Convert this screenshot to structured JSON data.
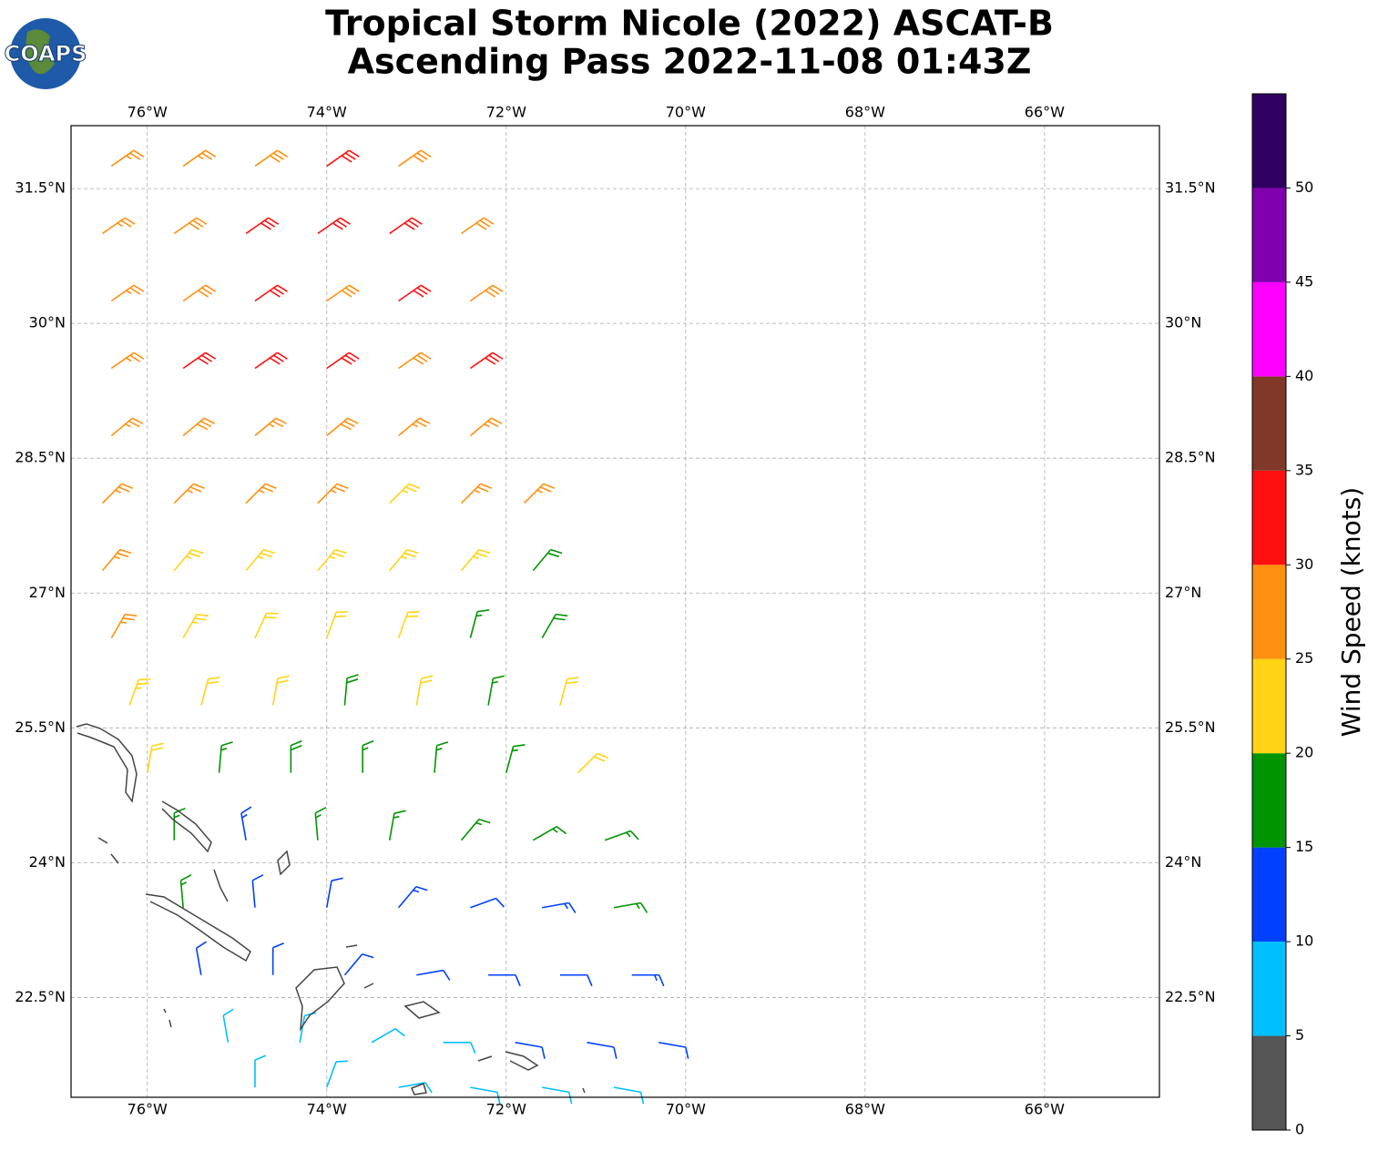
{
  "chart_data": {
    "type": "barb-map",
    "title": "Tropical Storm Nicole (2022) ASCAT-B",
    "subtitle": "Ascending Pass 2022-11-08 01:43Z",
    "logo_text": "COAPS",
    "xlim": [
      -76.85,
      -64.72
    ],
    "ylim": [
      21.39,
      32.2
    ],
    "xticks": [
      {
        "value": -76,
        "label": "76°W"
      },
      {
        "value": -74,
        "label": "74°W"
      },
      {
        "value": -72,
        "label": "72°W"
      },
      {
        "value": -70,
        "label": "70°W"
      },
      {
        "value": -68,
        "label": "68°W"
      },
      {
        "value": -66,
        "label": "66°W"
      }
    ],
    "yticks": [
      {
        "value": 22.5,
        "label": "22.5°N"
      },
      {
        "value": 24,
        "label": "24°N"
      },
      {
        "value": 25.5,
        "label": "25.5°N"
      },
      {
        "value": 27,
        "label": "27°N"
      },
      {
        "value": 28.5,
        "label": "28.5°N"
      },
      {
        "value": 30,
        "label": "30°N"
      },
      {
        "value": 31.5,
        "label": "31.5°N"
      }
    ],
    "grid": true,
    "barbs": {
      "lon": [
        -76.4,
        -75.6,
        -74.8,
        -74.0,
        -73.2,
        -76.5,
        -75.7,
        -74.9,
        -74.1,
        -73.3,
        -72.5,
        -76.4,
        -75.6,
        -74.8,
        -74.0,
        -73.2,
        -72.4,
        -76.4,
        -75.6,
        -74.8,
        -74.0,
        -73.2,
        -72.4,
        -76.4,
        -75.6,
        -74.8,
        -74.0,
        -73.2,
        -72.4,
        -76.5,
        -75.7,
        -74.9,
        -74.1,
        -73.3,
        -72.5,
        -71.8,
        -76.5,
        -75.7,
        -74.9,
        -74.1,
        -73.3,
        -72.5,
        -71.7,
        -76.4,
        -75.6,
        -74.8,
        -74.0,
        -73.2,
        -72.4,
        -71.6,
        -76.2,
        -75.4,
        -74.6,
        -73.8,
        -73.0,
        -72.2,
        -71.4,
        -76.0,
        -75.2,
        -74.4,
        -73.6,
        -72.8,
        -72.0,
        -71.2,
        -75.7,
        -74.9,
        -74.1,
        -73.3,
        -72.5,
        -71.7,
        -70.9,
        -75.6,
        -74.8,
        -74.0,
        -73.2,
        -72.4,
        -71.6,
        -70.8,
        -75.4,
        -74.6,
        -73.8,
        -73.0,
        -72.2,
        -71.4,
        -70.6,
        -75.1,
        -74.3,
        -73.5,
        -72.7,
        -71.9,
        -71.1,
        -70.3,
        -74.8,
        -74.0,
        -73.2,
        -72.4,
        -71.6,
        -70.8
      ],
      "lat": [
        31.75,
        31.75,
        31.75,
        31.75,
        31.75,
        31.0,
        31.0,
        31.0,
        31.0,
        31.0,
        31.0,
        30.25,
        30.25,
        30.25,
        30.25,
        30.25,
        30.25,
        29.5,
        29.5,
        29.5,
        29.5,
        29.5,
        29.5,
        28.75,
        28.75,
        28.75,
        28.75,
        28.75,
        28.75,
        28.0,
        28.0,
        28.0,
        28.0,
        28.0,
        28.0,
        28.0,
        27.25,
        27.25,
        27.25,
        27.25,
        27.25,
        27.25,
        27.25,
        26.5,
        26.5,
        26.5,
        26.5,
        26.5,
        26.5,
        26.5,
        25.75,
        25.75,
        25.75,
        25.75,
        25.75,
        25.75,
        25.75,
        25.0,
        25.0,
        25.0,
        25.0,
        25.0,
        25.0,
        25.0,
        24.25,
        24.25,
        24.25,
        24.25,
        24.25,
        24.25,
        24.25,
        23.5,
        23.5,
        23.5,
        23.5,
        23.5,
        23.5,
        23.5,
        22.75,
        22.75,
        22.75,
        22.75,
        22.75,
        22.75,
        22.75,
        22.0,
        22.0,
        22.0,
        22.0,
        22.0,
        22.0,
        22.0,
        21.5,
        21.5,
        21.5,
        21.5,
        21.5,
        21.5
      ],
      "speed": [
        27,
        27,
        29,
        32,
        28,
        27,
        28,
        32,
        31,
        31,
        28,
        26,
        28,
        31,
        29,
        32,
        29,
        27,
        32,
        31,
        31,
        28,
        31,
        27,
        29,
        27,
        28,
        27,
        27,
        27,
        26,
        26,
        25,
        24,
        26,
        27,
        27,
        24,
        23,
        23,
        24,
        23,
        18,
        26,
        23,
        22,
        22,
        22,
        17,
        18,
        23,
        22,
        22,
        18,
        22,
        17,
        21,
        22,
        17,
        18,
        17,
        17,
        17,
        21,
        17,
        13,
        16,
        16,
        17,
        17,
        16,
        17,
        12,
        12,
        13,
        12,
        14,
        17,
        12,
        12,
        12,
        12,
        12,
        12,
        13,
        8,
        8,
        8,
        9,
        11,
        12,
        11,
        8,
        8,
        9,
        8,
        9,
        8
      ],
      "dir": [
        55,
        55,
        55,
        55,
        55,
        55,
        55,
        55,
        55,
        55,
        55,
        55,
        55,
        55,
        55,
        55,
        55,
        55,
        55,
        55,
        55,
        55,
        55,
        50,
        50,
        50,
        50,
        50,
        50,
        45,
        45,
        45,
        45,
        45,
        45,
        45,
        40,
        40,
        40,
        40,
        40,
        40,
        40,
        30,
        30,
        25,
        20,
        20,
        15,
        30,
        20,
        15,
        10,
        5,
        10,
        10,
        15,
        10,
        5,
        0,
        0,
        5,
        15,
        45,
        0,
        350,
        355,
        10,
        40,
        60,
        70,
        355,
        355,
        10,
        40,
        70,
        80,
        80,
        350,
        0,
        40,
        80,
        90,
        90,
        90,
        350,
        10,
        60,
        90,
        100,
        100,
        100,
        0,
        20,
        80,
        100,
        100,
        100
      ]
    },
    "colorbar": {
      "label": "Wind Speed (knots)",
      "bounds": [
        0,
        5,
        10,
        15,
        20,
        25,
        30,
        35,
        40,
        45,
        50,
        55
      ],
      "colors": [
        "#555555",
        "#00bfff",
        "#0040ff",
        "#009400",
        "#ffd414",
        "#ff9010",
        "#ff1010",
        "#803828",
        "#ff00ff",
        "#8000b0",
        "#300060"
      ],
      "ticks": [
        0,
        5,
        10,
        15,
        20,
        25,
        30,
        35,
        40,
        45,
        50
      ]
    }
  }
}
